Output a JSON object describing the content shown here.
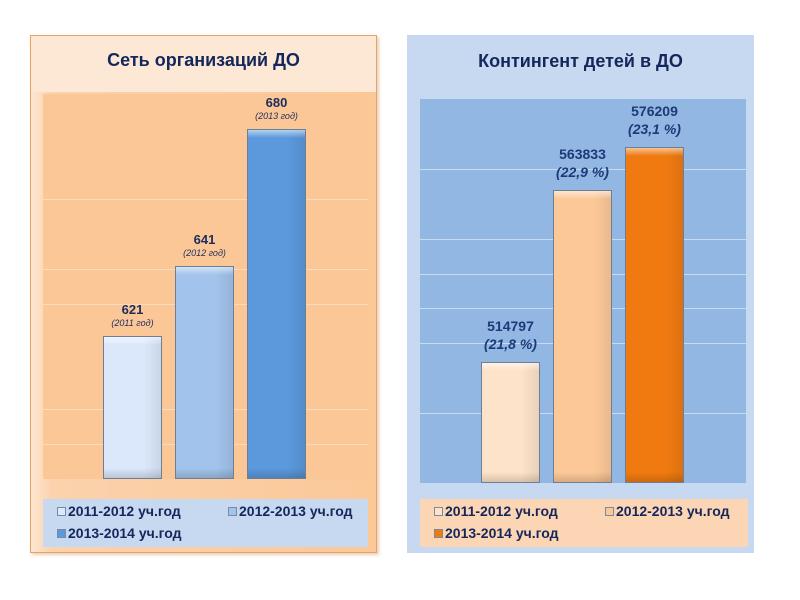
{
  "chart_data": [
    {
      "type": "bar",
      "title": "Сеть организаций ДО",
      "categories": [
        "2011-2012 уч.год",
        "2012-2013 уч.год",
        "2013-2014 уч.год"
      ],
      "values": [
        621,
        641,
        680
      ],
      "data_labels": [
        "621",
        "641",
        "680"
      ],
      "data_sublabels": [
        "(2011 год)",
        "(2012 год)",
        "(2013 год)"
      ],
      "colors": [
        "#dbe8fb",
        "#a2c3ec",
        "#5b98dc"
      ],
      "ylim": [
        580,
        690
      ],
      "gridlines": [
        590,
        600,
        630,
        640,
        660
      ],
      "grid": true,
      "xlabel": "",
      "ylabel": "",
      "legend": {
        "position": "bottom",
        "entries": [
          "2011-2012 уч.год",
          "2012-2013 уч.год",
          "2013-2014 уч.год"
        ]
      }
    },
    {
      "type": "bar",
      "title": "Контингент детей в ДО",
      "categories": [
        "2011-2012 уч.год",
        "2012-2013 уч.год",
        "2013-2014 уч.год"
      ],
      "values": [
        514797,
        563833,
        576209
      ],
      "percent": [
        21.8,
        22.9,
        23.1
      ],
      "data_labels": [
        "514797",
        "563833",
        "576209"
      ],
      "data_sublabels": [
        "(21,8 %)",
        "(22,9 %)",
        "(23,1 %)"
      ],
      "colors": [
        "#fde3c9",
        "#fcc898",
        "#f07a10"
      ],
      "ylim": [
        480000,
        590000
      ],
      "gridlines": [
        500000,
        520000,
        530000,
        540000,
        550000,
        570000
      ],
      "grid": true,
      "xlabel": "",
      "ylabel": "",
      "legend": {
        "position": "bottom",
        "entries": [
          "2011-2012 уч.год",
          "2012-2013 уч.год",
          "2013-2014 уч.год"
        ]
      }
    }
  ]
}
